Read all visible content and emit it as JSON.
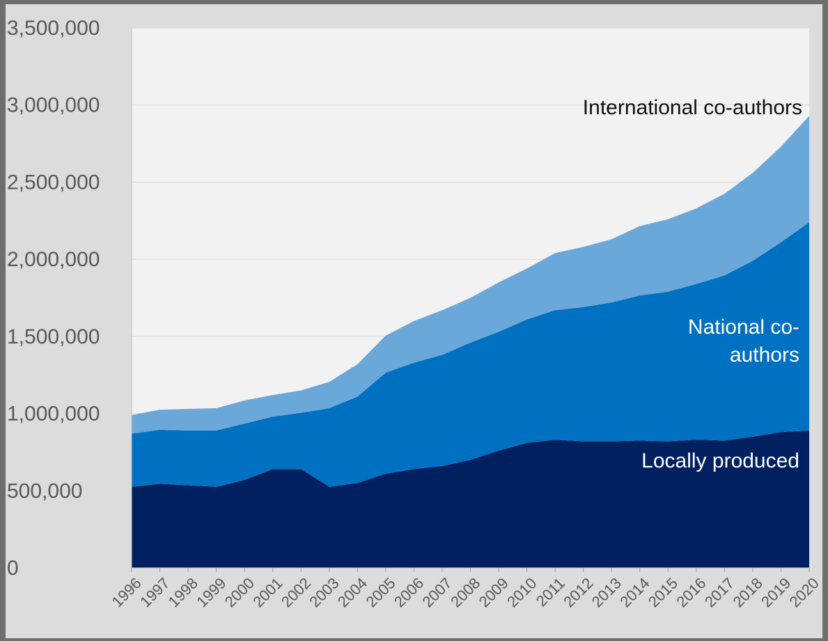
{
  "chart_data": {
    "type": "area",
    "stacked": true,
    "title": "",
    "xlabel": "",
    "ylabel": "",
    "x": [
      "1996",
      "1997",
      "1998",
      "1999",
      "2000",
      "2001",
      "2002",
      "2003",
      "2004",
      "2005",
      "2006",
      "2007",
      "2008",
      "2009",
      "2010",
      "2011",
      "2012",
      "2013",
      "2014",
      "2015",
      "2016",
      "2017",
      "2018",
      "2019",
      "2020"
    ],
    "ylim": [
      0,
      3500000
    ],
    "y_ticks": [
      "0",
      "500,000",
      "1,000,000",
      "1,500,000",
      "2,000,000",
      "2,500,000",
      "3,000,000",
      "3,500,000"
    ],
    "y_tick_values": [
      0,
      500000,
      1000000,
      1500000,
      2000000,
      2500000,
      3000000,
      3500000
    ],
    "grid": true,
    "series": [
      {
        "name": "Locally produced",
        "color": "#002060",
        "values": [
          525000,
          545000,
          535000,
          525000,
          570000,
          640000,
          640000,
          525000,
          550000,
          610000,
          640000,
          660000,
          700000,
          760000,
          810000,
          830000,
          820000,
          820000,
          825000,
          820000,
          830000,
          825000,
          850000,
          880000,
          890000
        ]
      },
      {
        "name": "National co-authors",
        "color": "#0070c0",
        "values": [
          345000,
          350000,
          355000,
          365000,
          365000,
          340000,
          365000,
          510000,
          560000,
          655000,
          690000,
          720000,
          760000,
          770000,
          800000,
          840000,
          870000,
          900000,
          940000,
          970000,
          1010000,
          1070000,
          1140000,
          1230000,
          1350000
        ]
      },
      {
        "name": "International co-authors",
        "color": "#6aa8da",
        "values": [
          120000,
          130000,
          140000,
          145000,
          150000,
          140000,
          145000,
          170000,
          210000,
          240000,
          270000,
          290000,
          290000,
          320000,
          330000,
          370000,
          390000,
          410000,
          450000,
          470000,
          490000,
          530000,
          570000,
          620000,
          690000
        ]
      }
    ],
    "annotations": {
      "international": "International co-authors",
      "national_line1": "National co-",
      "national_line2": "authors",
      "local": "Locally produced"
    },
    "colors": {
      "plot_background": "#f2f2f2",
      "page_background": "#dcdcdc",
      "gridline": "#d9d9d9"
    }
  }
}
